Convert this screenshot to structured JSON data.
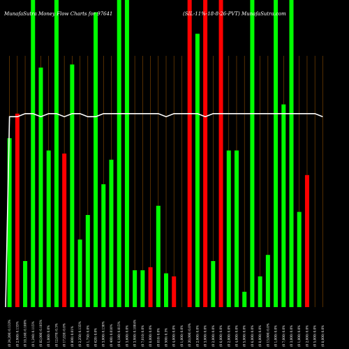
{
  "chart_data": {
    "type": "bar",
    "title_left": "MunafaSutra  Money Flow  Charts for 97641",
    "title_right": "(SIL-11%-18-8-26-PVT) MunafaSutra.com",
    "colors": {
      "up": "#00ff00",
      "down": "#ff0000",
      "line": "#ffffff",
      "grid": "#ff8c00",
      "background": "#000000"
    },
    "ylim": [
      0,
      100
    ],
    "categories": [
      "(0 24,200) 0.133%",
      "(0 2,980) 0.133%",
      "(0 10,160) 0.100%",
      "(0 1,240) 0.115%",
      "(0 82,000) 0.105%",
      "(0 1,060) 0.0%",
      "(0 12,070) 0.3%",
      "(0 17,820) 0.0%",
      "(0 800) 0.01%",
      "(0 2,250) 0.135%",
      "(0 1,750) 0.0%",
      "(0 620) 0.0%",
      "(0 3,000) 0.130%",
      "(0 400) 0.010%",
      "(0 6,180) 0.015%",
      "(0 3,600) 0.0%",
      "(0 3,980) 0.1004%",
      "(0 7,010) 0.0%",
      "(0 8,000) 0.0%",
      "(0 810) 0.0%",
      "(0 500) 0.3%",
      "(0 4,000) 0.0%",
      "(0 1,000) 0.0%",
      "(0 20,000) 0.0%",
      "(0 2,000) 0.0%",
      "(0 3,000) 0.0%",
      "(0 2,000) 0.0%",
      "(0 6,000) 0.0%",
      "(0 2,000) 0.0%",
      "(0 4,000) 0.0%",
      "(0 5,000) 0.0%",
      "(0 6,000) 0.0%",
      "(0 8,000) 0.0%",
      "(0 13,000) 0.0%",
      "(0 1,000) 0.0%",
      "(0 7,000) 0.0%",
      "(0 3,000) 0.0%",
      "(0 1,000) 0.0%",
      "(0 2,000) 0.0%",
      "(0 5,000) 0.0%",
      "(0 8,000) 0.0%"
    ],
    "directions": [
      "up",
      "down",
      "up",
      "up",
      "up",
      "up",
      "up",
      "down",
      "up",
      "up",
      "up",
      "up",
      "up",
      "up",
      "up",
      "up",
      "up",
      "up",
      "down",
      "up",
      "up",
      "down",
      "up",
      "down",
      "up",
      "down",
      "up",
      "down",
      "up",
      "up",
      "up",
      "up",
      "up",
      "up",
      "up",
      "up",
      "up",
      "up",
      "down",
      "up",
      "down"
    ],
    "values": [
      55,
      63,
      15,
      100,
      78,
      51,
      100,
      50,
      79,
      22,
      30,
      96,
      40,
      48,
      100,
      100,
      12,
      12,
      13,
      33,
      11,
      10,
      0,
      100,
      89,
      100,
      15,
      100,
      51,
      51,
      5,
      100,
      10,
      17,
      100,
      66,
      100,
      31,
      43,
      0,
      0
    ],
    "line_values": [
      62,
      62,
      63,
      63,
      62,
      63,
      63,
      62,
      63,
      63,
      62,
      62,
      63,
      63,
      63,
      63,
      63,
      63,
      63,
      63,
      62,
      63,
      63,
      63,
      63,
      62,
      63,
      63,
      63,
      63,
      63,
      63,
      63,
      63,
      63,
      63,
      63,
      63,
      63,
      63,
      62
    ]
  }
}
